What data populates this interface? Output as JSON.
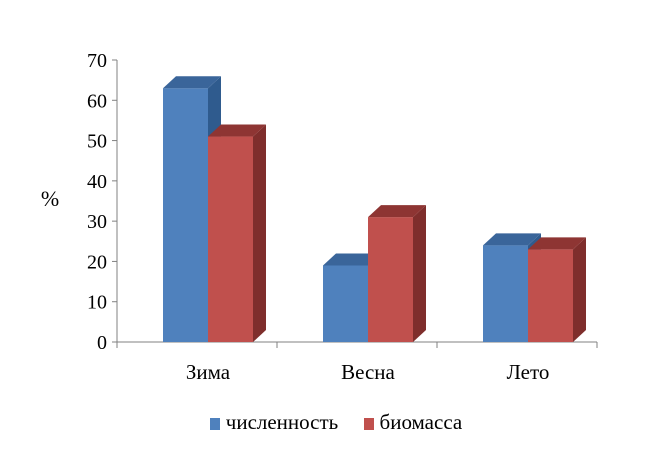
{
  "chart_data": {
    "type": "bar",
    "style": "3d-clustered-column",
    "categories": [
      "Зима",
      "Весна",
      "Лето"
    ],
    "series": [
      {
        "name": "численность",
        "values": [
          63,
          19,
          24
        ],
        "color": "#4F81BD",
        "side_color": "#2F5B8E",
        "top_color": "#3A659A"
      },
      {
        "name": "биомасса",
        "values": [
          51,
          31,
          23
        ],
        "color": "#C0504D",
        "side_color": "#7F2E2C",
        "top_color": "#8E3533"
      }
    ],
    "ylabel": "%",
    "xlabel": "",
    "title": "",
    "ylim": [
      0,
      70
    ],
    "yticks": [
      0,
      10,
      20,
      30,
      40,
      50,
      60,
      70
    ],
    "grid": false,
    "legend_position": "bottom"
  }
}
